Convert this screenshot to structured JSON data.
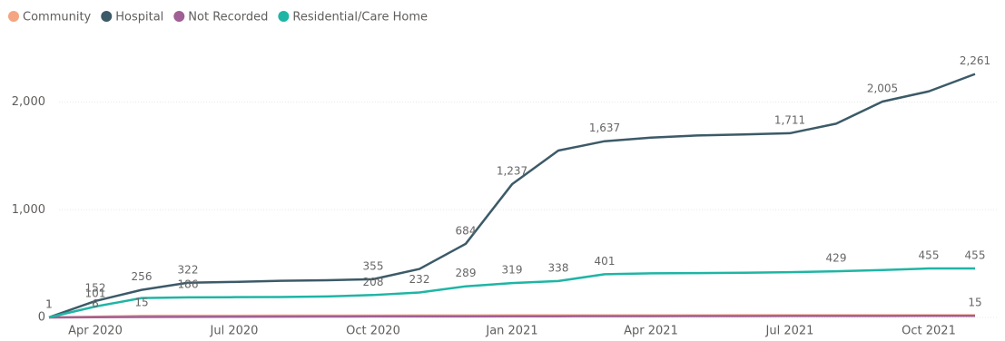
{
  "chart_data": {
    "type": "line",
    "x": [
      "2020-03",
      "2020-04",
      "2020-05",
      "2020-06",
      "2020-07",
      "2020-08",
      "2020-09",
      "2020-10",
      "2020-11",
      "2020-12",
      "2021-01",
      "2021-02",
      "2021-03",
      "2021-04",
      "2021-05",
      "2021-06",
      "2021-07",
      "2021-08",
      "2021-09",
      "2021-10",
      "2021-11"
    ],
    "xticks": [
      {
        "value": "2020-04",
        "label": "Apr 2020"
      },
      {
        "value": "2020-07",
        "label": "Jul 2020"
      },
      {
        "value": "2020-10",
        "label": "Oct 2020"
      },
      {
        "value": "2021-01",
        "label": "Jan 2021"
      },
      {
        "value": "2021-04",
        "label": "Apr 2021"
      },
      {
        "value": "2021-07",
        "label": "Jul 2021"
      },
      {
        "value": "2021-10",
        "label": "Oct 2021"
      }
    ],
    "ylim": [
      0,
      2300
    ],
    "yticks": [
      {
        "value": 0,
        "label": "0"
      },
      {
        "value": 1000,
        "label": "1,000"
      },
      {
        "value": 2000,
        "label": "2,000"
      }
    ],
    "grid": true,
    "legend": "top-left",
    "series": [
      {
        "name": "Community",
        "color": "#f4a582",
        "values": [
          0,
          6,
          15,
          16,
          16,
          17,
          17,
          17,
          18,
          18,
          19,
          19,
          19,
          19,
          19,
          20,
          20,
          20,
          20,
          20,
          20
        ],
        "value_labels": [
          null,
          "6",
          "15",
          null,
          null,
          null,
          null,
          null,
          null,
          null,
          null,
          null,
          null,
          null,
          null,
          null,
          null,
          null,
          null,
          null,
          null
        ]
      },
      {
        "name": "Hospital",
        "color": "#3c5a68",
        "values": [
          1,
          152,
          256,
          322,
          330,
          340,
          345,
          355,
          450,
          684,
          1237,
          1550,
          1637,
          1670,
          1690,
          1700,
          1711,
          1800,
          2005,
          2100,
          2261
        ],
        "value_labels": [
          "1",
          "152",
          "256",
          "322",
          null,
          null,
          null,
          "355",
          null,
          "684",
          "1,237",
          null,
          "1,637",
          null,
          null,
          null,
          "1,711",
          null,
          "2,005",
          null,
          "2,261"
        ]
      },
      {
        "name": "Not Recorded",
        "color": "#a05f95",
        "values": [
          0,
          2,
          4,
          5,
          6,
          7,
          8,
          9,
          10,
          10,
          11,
          11,
          12,
          12,
          13,
          13,
          14,
          14,
          14,
          15,
          15
        ],
        "value_labels": [
          null,
          null,
          null,
          null,
          null,
          null,
          null,
          null,
          null,
          null,
          null,
          null,
          null,
          null,
          null,
          null,
          null,
          null,
          null,
          null,
          "15"
        ]
      },
      {
        "name": "Residential/Care Home",
        "color": "#1fb5a5",
        "values": [
          1,
          101,
          180,
          186,
          188,
          190,
          195,
          208,
          232,
          289,
          319,
          338,
          401,
          410,
          412,
          415,
          420,
          429,
          440,
          455,
          455
        ],
        "value_labels": [
          "1",
          "101",
          null,
          "186",
          null,
          null,
          null,
          "208",
          "232",
          "289",
          "319",
          "338",
          "401",
          null,
          null,
          null,
          null,
          "429",
          null,
          "455",
          "455"
        ]
      }
    ]
  }
}
